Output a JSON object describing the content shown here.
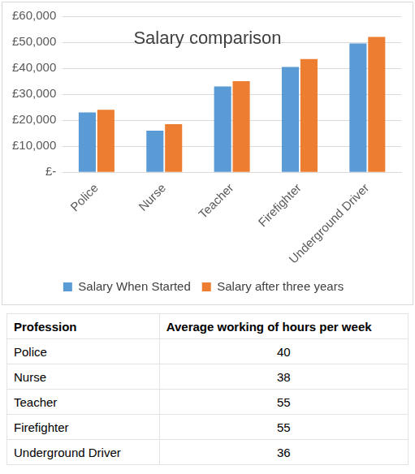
{
  "chart_data": {
    "type": "bar",
    "title": "Salary comparison",
    "categories": [
      "Police",
      "Nurse",
      "Teacher",
      "Firefighter",
      "Underground Driver"
    ],
    "series": [
      {
        "name": "Salary When Started",
        "color": "#5b9bd5",
        "values": [
          23000,
          16000,
          33000,
          40500,
          49500
        ]
      },
      {
        "name": "Salary after three years",
        "color": "#ed7d31",
        "values": [
          24000,
          18500,
          35000,
          43500,
          52000
        ]
      }
    ],
    "ylim": [
      0,
      60000
    ],
    "yticks": [
      {
        "value": 0,
        "label": "£-"
      },
      {
        "value": 10000,
        "label": "£10,000"
      },
      {
        "value": 20000,
        "label": "£20,000"
      },
      {
        "value": 30000,
        "label": "£30,000"
      },
      {
        "value": 40000,
        "label": "£40,000"
      },
      {
        "value": 50000,
        "label": "£50,000"
      },
      {
        "value": 60000,
        "label": "£60,000"
      }
    ],
    "grid": true,
    "legend": "bottom"
  },
  "table": {
    "columns": [
      "Profession",
      "Average working of hours per week"
    ],
    "rows": [
      [
        "Police",
        40
      ],
      [
        "Nurse",
        38
      ],
      [
        "Teacher",
        55
      ],
      [
        "Firefighter",
        55
      ],
      [
        "Underground Driver",
        36
      ]
    ]
  }
}
